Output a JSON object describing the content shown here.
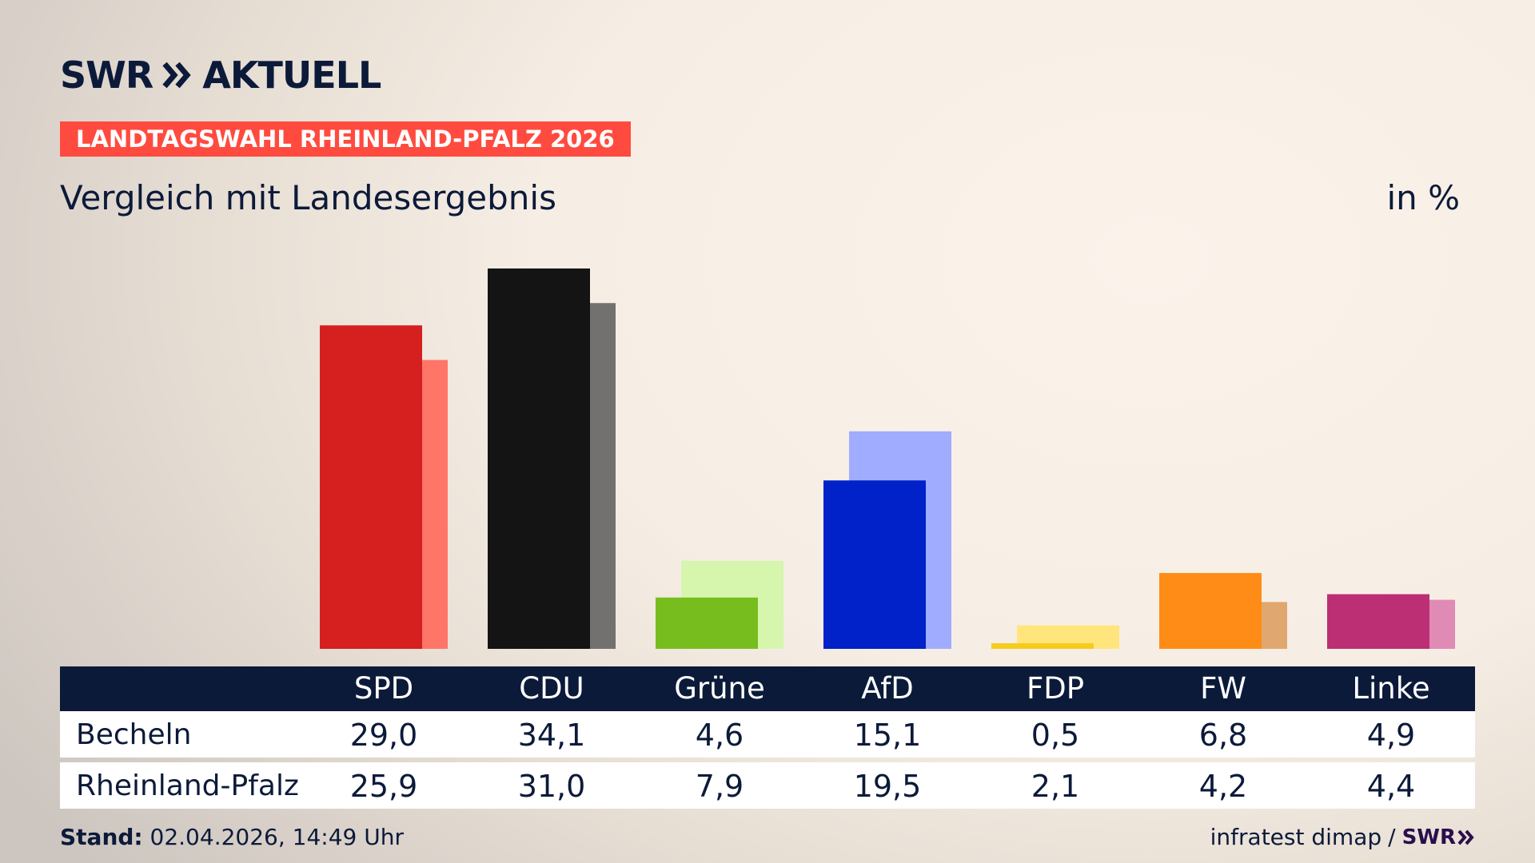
{
  "brand": {
    "logo_left": "SWR",
    "logo_right": "AKTUELL",
    "logo_icon": "double-chevron-right-icon"
  },
  "badge": "LANDTAGSWAHL RHEINLAND-PFALZ 2026",
  "subtitle": "Vergleich mit Landesergebnis",
  "unit": "in %",
  "chart_data": {
    "type": "bar",
    "categories": [
      "SPD",
      "CDU",
      "Grüne",
      "AfD",
      "FDP",
      "FW",
      "Linke"
    ],
    "series": [
      {
        "name": "Becheln",
        "values": [
          29.0,
          34.1,
          4.6,
          15.1,
          0.5,
          6.8,
          4.9
        ]
      },
      {
        "name": "Rheinland-Pfalz",
        "values": [
          25.9,
          31.0,
          7.9,
          19.5,
          2.1,
          4.2,
          4.4
        ]
      }
    ],
    "display_values": [
      [
        "29,0",
        "34,1",
        "4,6",
        "15,1",
        "0,5",
        "6,8",
        "4,9"
      ],
      [
        "25,9",
        "31,0",
        "7,9",
        "19,5",
        "2,1",
        "4,2",
        "4,4"
      ]
    ],
    "colors_primary": [
      "#d61f1f",
      "#141414",
      "#78bd1e",
      "#0022c8",
      "#f6cc1c",
      "#ff8c16",
      "#bc2f75"
    ],
    "colors_secondary": [
      "#ff7568",
      "#737070",
      "#d6f6ad",
      "#a0acff",
      "#ffe57c",
      "#e0a770",
      "#e08ab6"
    ],
    "ylim": [
      0,
      34.1
    ],
    "grid": false,
    "legend": "table-below"
  },
  "footer": {
    "stand_label": "Stand:",
    "stand_value": "02.04.2026, 14:49 Uhr",
    "source": "infratest dimap",
    "separator": "/",
    "source_brand": "SWR"
  }
}
